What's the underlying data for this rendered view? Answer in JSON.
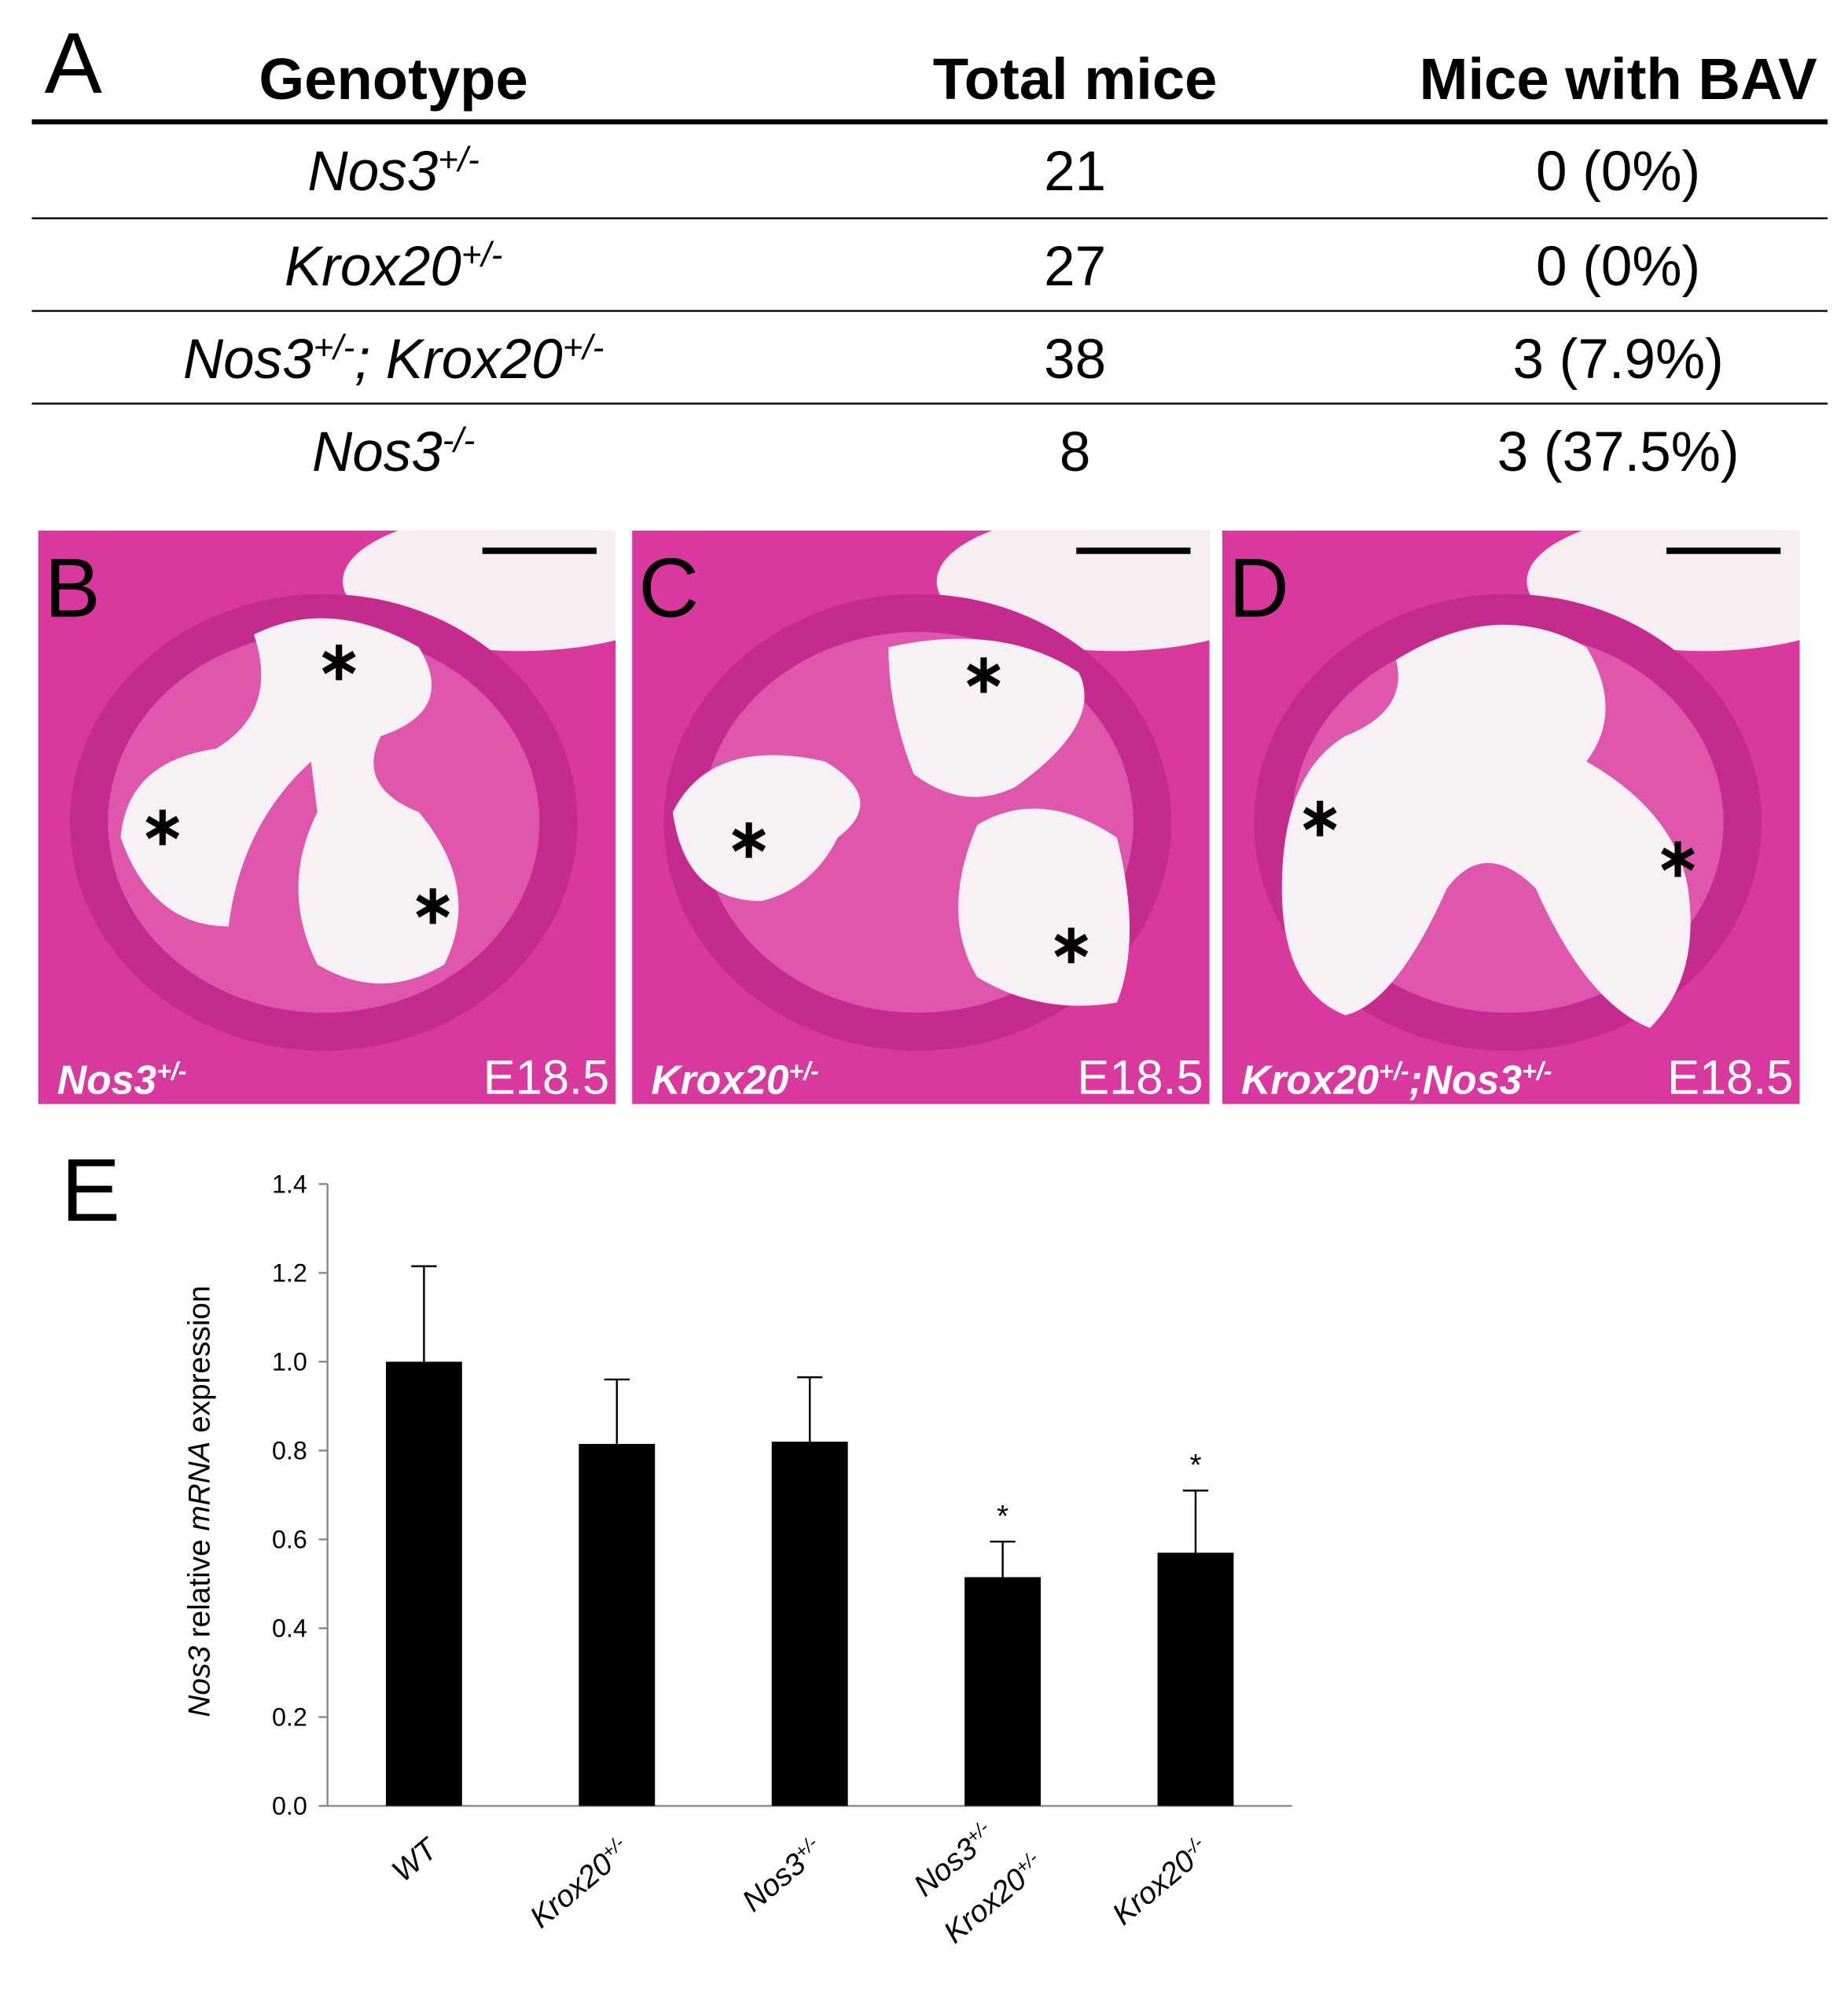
{
  "table": {
    "label": "A",
    "headers": [
      "Genotype",
      "Total mice",
      "Mice with BAV"
    ],
    "rows": [
      {
        "genotype": [
          {
            "text": "Nos3"
          },
          {
            "sup": "+/-"
          }
        ],
        "total": 21,
        "bav": "0 (0%)"
      },
      {
        "genotype": [
          {
            "text": "Krox20"
          },
          {
            "sup": "+/-"
          }
        ],
        "total": 27,
        "bav": "0 (0%)"
      },
      {
        "genotype": [
          {
            "text": "Nos3"
          },
          {
            "sup": "+/-"
          },
          {
            "text": "; Krox20"
          },
          {
            "sup": "+/-"
          }
        ],
        "total": 38,
        "bav": "3 (7.9%)"
      },
      {
        "genotype": [
          {
            "text": "Nos3"
          },
          {
            "sup": "-/-"
          }
        ],
        "total": 8,
        "bav": "3 (37.5%)"
      }
    ]
  },
  "panels": [
    {
      "label": "B",
      "genotype": [
        {
          "text": "Nos3"
        },
        {
          "sup": "+/-"
        }
      ],
      "stage": "E18.5"
    },
    {
      "label": "C",
      "genotype": [
        {
          "text": "Krox20"
        },
        {
          "sup": "+/-"
        }
      ],
      "stage": "E18.5"
    },
    {
      "label": "D",
      "genotype": [
        {
          "text": "Krox20"
        },
        {
          "sup": "+/-"
        },
        {
          "text": ";Nos3"
        },
        {
          "sup": "+/-"
        }
      ],
      "stage": "E18.5"
    }
  ],
  "chart_data": {
    "type": "bar",
    "panel_label": "E",
    "ylabel": [
      {
        "text": "Nos3",
        "italic": true
      },
      {
        "text": " relative "
      },
      {
        "text": "mRNA",
        "italic": true
      },
      {
        "text": " expression"
      }
    ],
    "categories": [
      [
        [
          {
            "text": "WT"
          }
        ]
      ],
      [
        [
          {
            "text": "Krox20"
          },
          {
            "sup": "+/-"
          }
        ]
      ],
      [
        [
          {
            "text": "Nos3"
          },
          {
            "sup": "+/-"
          }
        ]
      ],
      [
        [
          {
            "text": "Nos3"
          },
          {
            "sup": "+/-"
          }
        ],
        [
          {
            "text": "Krox20"
          },
          {
            "sup": "+/-"
          }
        ]
      ],
      [
        [
          {
            "text": "Krox20"
          },
          {
            "sup": "-/-"
          }
        ]
      ]
    ],
    "values": [
      1.0,
      0.815,
      0.82,
      0.515,
      0.57
    ],
    "errors": [
      0.215,
      0.145,
      0.145,
      0.08,
      0.14
    ],
    "significance": [
      null,
      null,
      null,
      "*",
      "*"
    ],
    "color": "#000000",
    "ylim": [
      0,
      1.4
    ],
    "yticks": [
      {
        "value": 0,
        "label": "0.0"
      },
      0.2,
      0.4,
      0.6,
      0.8,
      {
        "value": 1,
        "label": "1.0"
      },
      1.2,
      1.4
    ]
  }
}
